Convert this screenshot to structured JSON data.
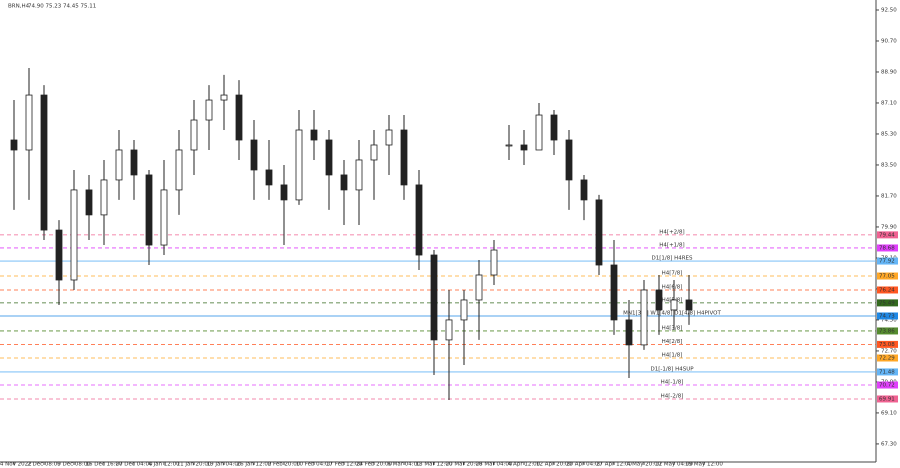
{
  "chart_data": {
    "type": "candlestick",
    "title": "BRN,H4",
    "ohlc_info": "74.90 75.23 74.45 75.11",
    "categories": [
      "24 Nov 2022",
      null,
      "2 Dec 08:00",
      null,
      "9 Dec 08:00",
      null,
      "16 Dec 16:00",
      null,
      "27 Dec 04:00",
      null,
      "4 Jan 12:00",
      null,
      "11 Jan 20:00",
      null,
      "19 Jan 04:00",
      null,
      "26 Jan 12:00",
      null,
      "2 Feb 20:00",
      null,
      "10 Feb 04:00",
      null,
      "17 Feb 12:00",
      null,
      "24 Feb 20:00",
      null,
      "6 Mar 04:00",
      null,
      "13 Mar 12:00",
      null,
      "20 Mar 20:00",
      null,
      "28 Mar 04:00",
      null,
      "4 Apr 12:00",
      null,
      "12 Apr 20:00",
      null,
      "20 Apr 04:00",
      null,
      "27 Apr 12:00",
      null,
      "4 May 20:00",
      null,
      "12 May 04:00",
      null,
      "19 May 12:00"
    ],
    "ohlc": [
      [
        84.95,
        87.27,
        80.89,
        84.37
      ],
      [
        84.37,
        89.13,
        81.47,
        87.56
      ],
      [
        87.56,
        88.14,
        79.14,
        79.72
      ],
      [
        79.72,
        80.3,
        75.37,
        76.82
      ],
      [
        76.82,
        83.21,
        76.24,
        82.05
      ],
      [
        82.05,
        82.92,
        79.14,
        80.6
      ],
      [
        80.6,
        83.79,
        78.85,
        82.63
      ],
      [
        82.63,
        85.53,
        81.47,
        84.37
      ],
      [
        84.37,
        84.95,
        81.47,
        82.92
      ],
      [
        82.92,
        83.21,
        77.69,
        78.85
      ],
      [
        78.85,
        83.79,
        78.27,
        82.05
      ],
      [
        82.05,
        85.53,
        80.6,
        84.37
      ],
      [
        84.37,
        87.27,
        82.92,
        86.11
      ],
      [
        86.11,
        88.14,
        84.37,
        87.27
      ],
      [
        87.27,
        88.73,
        85.53,
        87.56
      ],
      [
        87.56,
        88.43,
        83.79,
        84.95
      ],
      [
        84.95,
        86.11,
        81.47,
        83.21
      ],
      [
        83.21,
        84.95,
        81.47,
        82.34
      ],
      [
        82.34,
        83.5,
        78.85,
        81.47
      ],
      [
        81.47,
        86.69,
        81.18,
        85.53
      ],
      [
        85.53,
        86.69,
        83.79,
        84.95
      ],
      [
        84.95,
        85.53,
        80.89,
        82.92
      ],
      [
        82.92,
        83.79,
        80.01,
        82.05
      ],
      [
        82.05,
        84.95,
        80.01,
        83.79
      ],
      [
        83.79,
        85.53,
        81.47,
        84.66
      ],
      [
        84.66,
        86.4,
        82.92,
        85.53
      ],
      [
        85.53,
        86.4,
        81.47,
        82.34
      ],
      [
        82.34,
        83.21,
        77.4,
        78.27
      ],
      [
        78.27,
        78.56,
        71.3,
        73.34
      ],
      [
        73.34,
        76.24,
        69.85,
        74.5
      ],
      [
        74.5,
        76.24,
        71.88,
        75.66
      ],
      [
        75.66,
        77.98,
        73.34,
        77.11
      ],
      [
        77.11,
        79.14,
        76.53,
        78.56
      ],
      [
        84.66,
        85.82,
        83.79,
        84.66
      ],
      [
        84.66,
        85.53,
        83.5,
        84.37
      ],
      [
        84.37,
        87.1,
        84.37,
        86.4
      ],
      [
        86.4,
        86.69,
        84.08,
        84.95
      ],
      [
        84.95,
        85.53,
        80.89,
        82.63
      ],
      [
        82.63,
        82.92,
        80.3,
        81.47
      ],
      [
        81.47,
        81.76,
        77.11,
        77.69
      ],
      [
        77.69,
        79.14,
        73.63,
        74.5
      ],
      [
        74.5,
        75.66,
        71.13,
        73.05
      ],
      [
        73.05,
        76.82,
        72.76,
        76.24
      ],
      [
        76.24,
        77.11,
        73.63,
        75.08
      ],
      [
        75.08,
        76.82,
        73.92,
        75.66
      ],
      [
        75.66,
        77.11,
        74.21,
        75.08
      ],
      null
    ],
    "candle_color": "#222222",
    "ylim": [
      66.25,
      93.08
    ],
    "yticks": [
      {
        "value": 92.5,
        "label": "92.50"
      },
      {
        "value": 90.7,
        "label": "90.70"
      },
      {
        "value": 88.9,
        "label": "88.90"
      },
      {
        "value": 87.1,
        "label": "87.10"
      },
      {
        "value": 85.3,
        "label": "85.30"
      },
      {
        "value": 83.5,
        "label": "83.50"
      },
      {
        "value": 81.7,
        "label": "81.70"
      },
      {
        "value": 79.9,
        "label": "79.90"
      },
      {
        "value": 78.1,
        "label": "78.10"
      },
      {
        "value": 76.3,
        "label": "76.30"
      },
      {
        "value": 74.5,
        "label": "74.50"
      },
      {
        "value": 72.7,
        "label": "72.70"
      },
      {
        "value": 70.9,
        "label": "70.90"
      },
      {
        "value": 69.1,
        "label": "69.10"
      },
      {
        "value": 67.3,
        "label": "67.30"
      }
    ],
    "levels": [
      {
        "name": "H4[+2/8]",
        "value": 79.44,
        "color": "#f06292",
        "dashed": true
      },
      {
        "name": "H4[+1/8]",
        "value": 78.68,
        "color": "#e040fb",
        "dashed": true
      },
      {
        "name": "D1[1/8] H4RES",
        "value": 77.92,
        "color": "#64b5f6",
        "dashed": false
      },
      {
        "name": "H4[7/8]",
        "value": 77.05,
        "color": "#ffa726",
        "dashed": true
      },
      {
        "name": "H4[6/8]",
        "value": 76.24,
        "color": "#ff5722",
        "dashed": true
      },
      {
        "name": "H4[5/8]",
        "value": 75.49,
        "color": "#33691e",
        "dashed": true
      },
      {
        "name": "MN1[3/8] W1[4/8] D1[4/8] H4PIVOT",
        "value": 74.73,
        "color": "#1e88e5",
        "dashed": false
      },
      {
        "name": "H4[3/8]",
        "value": 73.86,
        "color": "#558b2f",
        "dashed": true
      },
      {
        "name": "H4[2/8]",
        "value": 73.08,
        "color": "#ff5722",
        "dashed": true
      },
      {
        "name": "H4[1/8]",
        "value": 72.29,
        "color": "#ffa726",
        "dashed": true
      },
      {
        "name": "D1[-1/8] H4SUP",
        "value": 71.48,
        "color": "#64b5f6",
        "dashed": false
      },
      {
        "name": "H4[-1/8]",
        "value": 70.72,
        "color": "#e040fb",
        "dashed": true
      },
      {
        "name": "H4[-2/8]",
        "value": 69.91,
        "color": "#f06292",
        "dashed": true
      }
    ]
  }
}
